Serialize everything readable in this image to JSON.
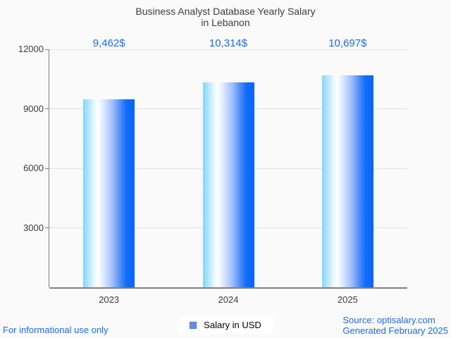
{
  "chart_data": {
    "type": "bar",
    "title_line1": "Business Analyst Database Yearly Salary",
    "title_line2": "in Lebanon",
    "categories": [
      "2023",
      "2024",
      "2025"
    ],
    "values": [
      9462,
      10314,
      10697
    ],
    "value_labels": [
      "9,462$",
      "10,314$",
      "10,697$"
    ],
    "yticks": [
      3000,
      6000,
      9000,
      12000
    ],
    "ylim": [
      0,
      12000
    ],
    "grid": "horizontal",
    "legend_position": "bottom-center",
    "legend": [
      {
        "label": "Salary in USD",
        "swatch_color": "#5e92e8",
        "swatch_border": "#4678c8"
      }
    ],
    "colors": {
      "accent_text": "#1a6ce8",
      "text_dark": "#3d3d3d",
      "axis": "#808080",
      "grid": "#e2e2e2",
      "bar_gradient": [
        [
          "#82d5fd",
          "0%"
        ],
        [
          "#e9f8ff",
          "22%"
        ],
        [
          "#ffffff",
          "29%"
        ],
        [
          "#dbe8fe",
          "40%"
        ],
        [
          "#9cbdfb",
          "58%"
        ],
        [
          "#4687f8",
          "74%"
        ],
        [
          "#0f6efc",
          "84%"
        ],
        [
          "#0b63f5",
          "100%"
        ]
      ]
    }
  },
  "footer": {
    "left_note": "For informational use only",
    "source_line1": "Source: optisalary.com",
    "source_line2": "Generated February 2025"
  }
}
